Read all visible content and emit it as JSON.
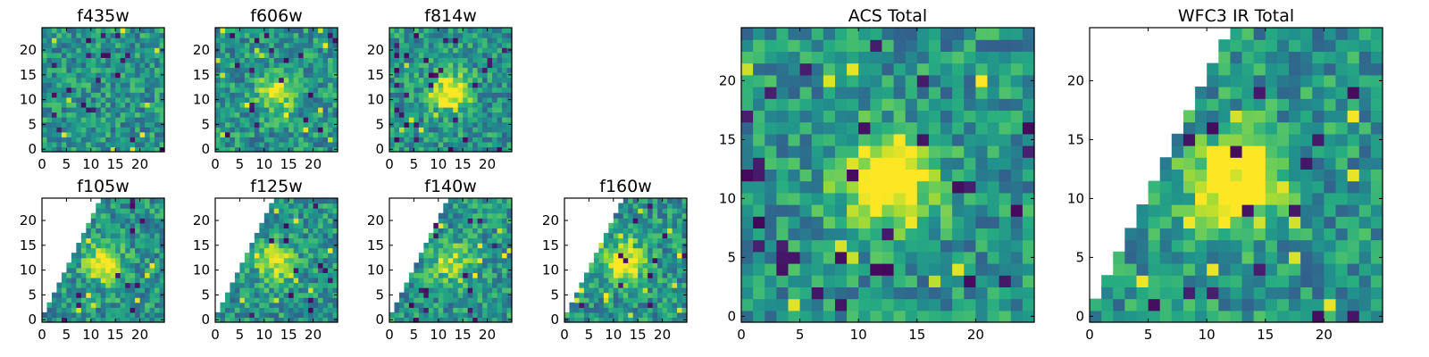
{
  "chart_data": [
    {
      "type": "heatmap",
      "title": "f435w",
      "xticks": [
        0,
        5,
        10,
        15,
        20
      ],
      "yticks": [
        0,
        5,
        10,
        15,
        20
      ],
      "xlim": [
        0,
        25
      ],
      "ylim": [
        0,
        25
      ],
      "grid_size": 25,
      "colormap": "viridis",
      "source_strength": 0.0,
      "masked_corner": "none"
    },
    {
      "type": "heatmap",
      "title": "f606w",
      "xticks": [
        0,
        5,
        10,
        15,
        20
      ],
      "yticks": [
        0,
        5,
        10,
        15,
        20
      ],
      "xlim": [
        0,
        25
      ],
      "ylim": [
        0,
        25
      ],
      "grid_size": 25,
      "colormap": "viridis",
      "source_strength": 0.45,
      "masked_corner": "none"
    },
    {
      "type": "heatmap",
      "title": "f814w",
      "xticks": [
        0,
        5,
        10,
        15,
        20
      ],
      "yticks": [
        0,
        5,
        10,
        15,
        20
      ],
      "xlim": [
        0,
        25
      ],
      "ylim": [
        0,
        25
      ],
      "grid_size": 25,
      "colormap": "viridis",
      "source_strength": 0.6,
      "masked_corner": "none"
    },
    {
      "type": "heatmap",
      "title": "f105w",
      "xticks": [
        0,
        5,
        10,
        15,
        20
      ],
      "yticks": [
        0,
        5,
        10,
        15,
        20
      ],
      "xlim": [
        0,
        25
      ],
      "ylim": [
        0,
        25
      ],
      "grid_size": 25,
      "colormap": "viridis",
      "source_strength": 0.5,
      "masked_corner": "top-left"
    },
    {
      "type": "heatmap",
      "title": "f125w",
      "xticks": [
        0,
        5,
        10,
        15,
        20
      ],
      "yticks": [
        0,
        5,
        10,
        15,
        20
      ],
      "xlim": [
        0,
        25
      ],
      "ylim": [
        0,
        25
      ],
      "grid_size": 25,
      "colormap": "viridis",
      "source_strength": 0.45,
      "masked_corner": "top-left"
    },
    {
      "type": "heatmap",
      "title": "f140w",
      "xticks": [
        0,
        5,
        10,
        15,
        20
      ],
      "yticks": [
        0,
        5,
        10,
        15,
        20
      ],
      "xlim": [
        0,
        25
      ],
      "ylim": [
        0,
        25
      ],
      "grid_size": 25,
      "colormap": "viridis",
      "source_strength": 0.4,
      "masked_corner": "top-left"
    },
    {
      "type": "heatmap",
      "title": "f160w",
      "xticks": [
        0,
        5,
        10,
        15,
        20
      ],
      "yticks": [
        0,
        5,
        10,
        15,
        20
      ],
      "xlim": [
        0,
        25
      ],
      "ylim": [
        0,
        25
      ],
      "grid_size": 25,
      "colormap": "viridis",
      "source_strength": 0.6,
      "masked_corner": "top-left"
    },
    {
      "type": "heatmap",
      "title": "ACS Total",
      "xticks": [
        0,
        5,
        10,
        15,
        20
      ],
      "yticks": [
        0,
        5,
        10,
        15,
        20
      ],
      "xlim": [
        0,
        25
      ],
      "ylim": [
        0,
        25
      ],
      "grid_size": 25,
      "colormap": "viridis",
      "source_strength": 0.75,
      "masked_corner": "none"
    },
    {
      "type": "heatmap",
      "title": "WFC3 IR Total",
      "xticks": [
        0,
        5,
        10,
        15,
        20
      ],
      "yticks": [
        0,
        5,
        10,
        15,
        20
      ],
      "xlim": [
        0,
        25
      ],
      "ylim": [
        0,
        25
      ],
      "grid_size": 25,
      "colormap": "viridis",
      "source_strength": 0.8,
      "masked_corner": "top-left"
    }
  ]
}
